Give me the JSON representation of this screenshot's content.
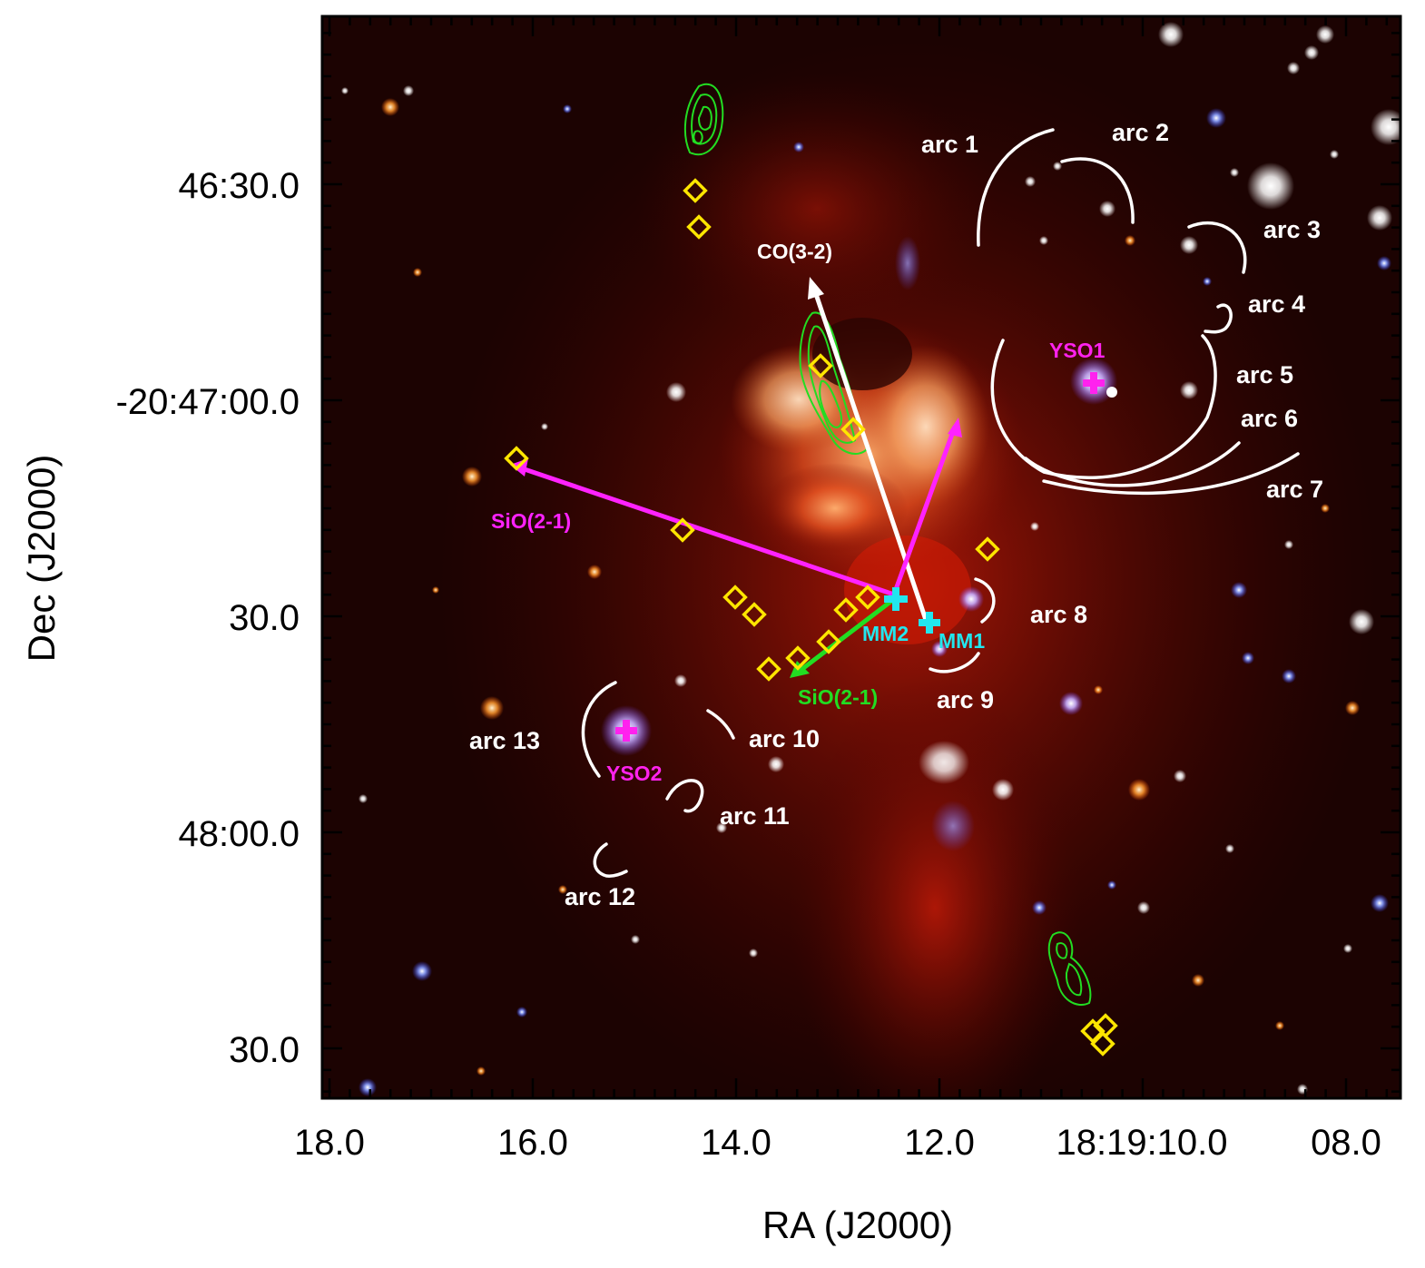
{
  "colors": {
    "arc": "#ffffff",
    "co_outflow": "#ffffff",
    "sio_magenta": "#ff22ff",
    "sio_green": "#22dd22",
    "mm_cyan": "#22e6ee",
    "yso_magenta": "#ff22ee",
    "diamond": "#ffe600",
    "contour": "#22dd22"
  },
  "axes": {
    "x_title": "RA (J2000)",
    "y_title": "Dec (J2000)",
    "x_ticks": [
      "18.0",
      "16.0",
      "14.0",
      "12.0",
      "18:19:10.0",
      "08.0"
    ],
    "y_ticks": [
      "46:30.0",
      "-20:47:00.0",
      "30.0",
      "48:00.0",
      "30.0"
    ]
  },
  "labels": {
    "arcs": [
      "arc 1",
      "arc 2",
      "arc 3",
      "arc 4",
      "arc 5",
      "arc 6",
      "arc 7",
      "arc 8",
      "arc 9",
      "arc 10",
      "arc 11",
      "arc 12",
      "arc 13"
    ],
    "co_outflow": "CO(3-2)",
    "sio_magenta": "SiO(2-1)",
    "sio_green": "SiO(2-1)",
    "mm1": "MM1",
    "mm2": "MM2",
    "yso1": "YSO1",
    "yso2": "YSO2"
  }
}
